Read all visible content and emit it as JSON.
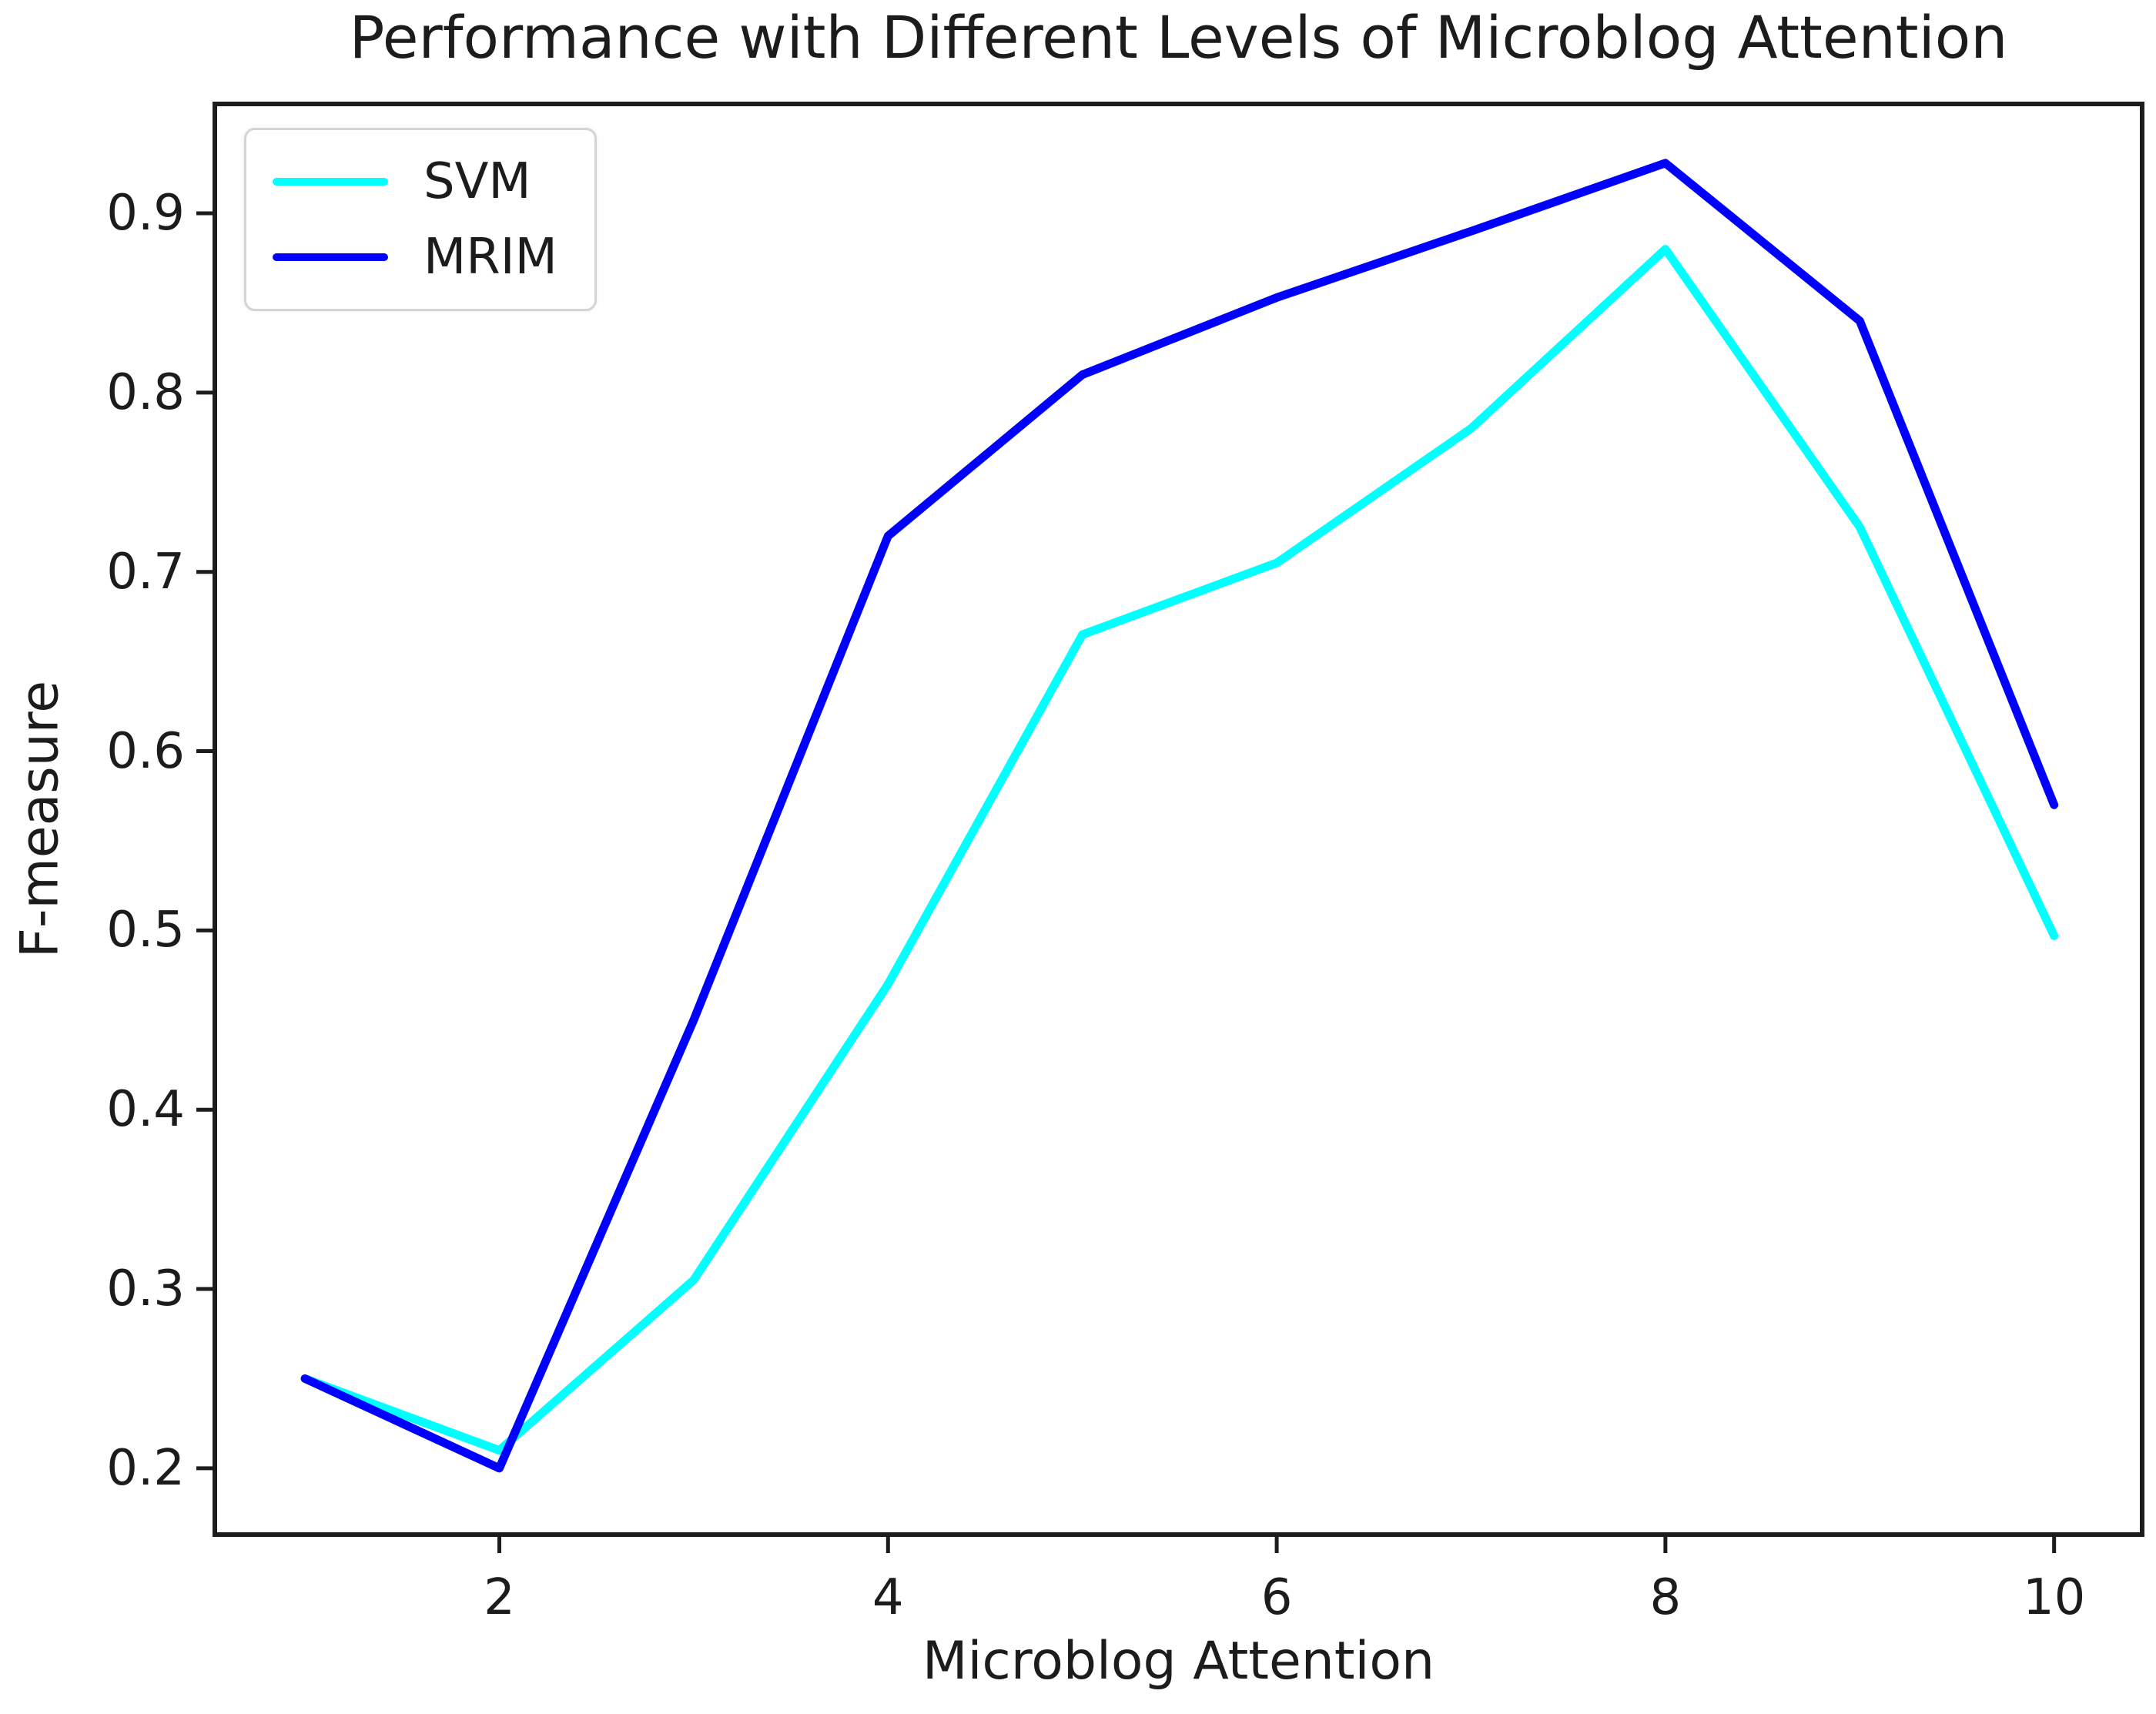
{
  "title": "Performance with Different Levels of Microblog Attention",
  "chart_data": {
    "type": "line",
    "title": "Performance with Different Levels of Microblog Attention",
    "xlabel": "Microblog Attention",
    "ylabel": "F-measure",
    "x": [
      1,
      2,
      3,
      4,
      5,
      6,
      7,
      8,
      9,
      10
    ],
    "series": [
      {
        "name": "SVM",
        "color": "#00ffff",
        "values": [
          0.25,
          0.21,
          0.305,
          0.47,
          0.665,
          0.705,
          0.78,
          0.88,
          0.725,
          0.497
        ]
      },
      {
        "name": "MRIM",
        "color": "#0000ff",
        "values": [
          0.25,
          0.2,
          0.45,
          0.72,
          0.81,
          0.853,
          0.89,
          0.928,
          0.84,
          0.57
        ]
      }
    ],
    "xticks": [
      2,
      4,
      6,
      8,
      10
    ],
    "xtick_labels": [
      "2",
      "4",
      "6",
      "8",
      "10"
    ],
    "yticks": [
      0.2,
      0.3,
      0.4,
      0.5,
      0.6,
      0.7,
      0.8,
      0.9
    ],
    "ytick_labels": [
      "0.2",
      "0.3",
      "0.4",
      "0.5",
      "0.6",
      "0.7",
      "0.8",
      "0.9"
    ],
    "xlim": [
      0.536,
      10.453
    ],
    "ylim": [
      0.163,
      0.961
    ],
    "grid": false,
    "legend_position": "upper left",
    "axis_color": "#1c1c1c"
  }
}
